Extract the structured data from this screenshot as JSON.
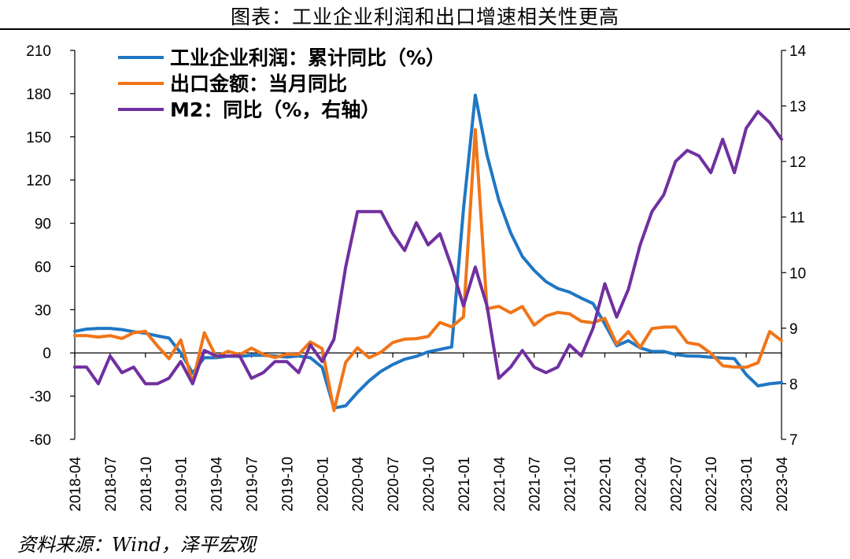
{
  "title": "图表：工业企业利润和出口增速相关性更高",
  "source": "资料来源：Wind，泽平宏观",
  "chart_data": {
    "type": "line",
    "x_tick_labels": [
      "2018-04",
      "2018-07",
      "2018-10",
      "2019-01",
      "2019-04",
      "2019-07",
      "2019-10",
      "2020-01",
      "2020-04",
      "2020-07",
      "2020-10",
      "2021-01",
      "2021-04",
      "2021-07",
      "2021-10",
      "2022-01",
      "2022-04",
      "2022-07",
      "2022-10",
      "2023-01",
      "2023-04"
    ],
    "x_range": [
      "2018-04",
      "2023-04"
    ],
    "y_left": {
      "ticks": [
        210,
        180,
        150,
        120,
        90,
        60,
        30,
        0,
        -30,
        -60
      ],
      "range": [
        -60,
        210
      ]
    },
    "y_right": {
      "ticks": [
        14,
        13,
        12,
        11,
        10,
        9,
        8,
        7
      ],
      "range": [
        7,
        14
      ]
    },
    "legend": {
      "placement": "top-left"
    },
    "grid": false,
    "series": [
      {
        "name": "工业企业利润：累计同比（%",
        "label_suffix": "）",
        "axis": "left",
        "color": "#1f77c4",
        "points": [
          [
            "2018-04",
            15
          ],
          [
            "2018-05",
            16.5
          ],
          [
            "2018-06",
            17
          ],
          [
            "2018-07",
            17
          ],
          [
            "2018-08",
            16.2
          ],
          [
            "2018-09",
            14.7
          ],
          [
            "2018-10",
            13.6
          ],
          [
            "2018-11",
            11.8
          ],
          [
            "2018-12",
            10.3
          ],
          [
            "2019-01",
            0
          ],
          [
            "2019-02",
            -14
          ],
          [
            "2019-03",
            -3.3
          ],
          [
            "2019-04",
            -3.4
          ],
          [
            "2019-05",
            -2.3
          ],
          [
            "2019-06",
            -2.4
          ],
          [
            "2019-07",
            -1.7
          ],
          [
            "2019-08",
            -1.7
          ],
          [
            "2019-09",
            -2.1
          ],
          [
            "2019-10",
            -2.9
          ],
          [
            "2019-11",
            -2.1
          ],
          [
            "2019-12",
            -3.3
          ],
          [
            "2020-01",
            -10
          ],
          [
            "2020-02",
            -38.3
          ],
          [
            "2020-03",
            -36.7
          ],
          [
            "2020-04",
            -27.4
          ],
          [
            "2020-05",
            -19.3
          ],
          [
            "2020-06",
            -12.8
          ],
          [
            "2020-07",
            -8.1
          ],
          [
            "2020-08",
            -4.4
          ],
          [
            "2020-09",
            -2.4
          ],
          [
            "2020-10",
            0.7
          ],
          [
            "2020-11",
            2.4
          ],
          [
            "2020-12",
            4.1
          ],
          [
            "2021-01",
            100
          ],
          [
            "2021-02",
            178.9
          ],
          [
            "2021-03",
            137.3
          ],
          [
            "2021-04",
            106
          ],
          [
            "2021-05",
            83.4
          ],
          [
            "2021-06",
            66.9
          ],
          [
            "2021-07",
            57.3
          ],
          [
            "2021-08",
            49.5
          ],
          [
            "2021-09",
            44.7
          ],
          [
            "2021-10",
            42.2
          ],
          [
            "2021-11",
            38
          ],
          [
            "2021-12",
            34.3
          ],
          [
            "2022-01",
            20
          ],
          [
            "2022-02",
            5
          ],
          [
            "2022-03",
            8.5
          ],
          [
            "2022-04",
            3.5
          ],
          [
            "2022-05",
            1
          ],
          [
            "2022-06",
            1
          ],
          [
            "2022-07",
            -1.1
          ],
          [
            "2022-08",
            -2.1
          ],
          [
            "2022-09",
            -2.3
          ],
          [
            "2022-10",
            -3
          ],
          [
            "2022-11",
            -3.6
          ],
          [
            "2022-12",
            -4
          ],
          [
            "2023-01",
            -15
          ],
          [
            "2023-02",
            -22.9
          ],
          [
            "2023-03",
            -21.4
          ],
          [
            "2023-04",
            -20.6
          ]
        ]
      },
      {
        "name": "出口金额：当月同比",
        "axis": "left",
        "color": "#f07518",
        "points": [
          [
            "2018-04",
            12
          ],
          [
            "2018-05",
            12
          ],
          [
            "2018-06",
            11
          ],
          [
            "2018-07",
            12
          ],
          [
            "2018-08",
            10
          ],
          [
            "2018-09",
            14
          ],
          [
            "2018-10",
            15
          ],
          [
            "2018-11",
            5
          ],
          [
            "2018-12",
            -4
          ],
          [
            "2019-01",
            9
          ],
          [
            "2019-02",
            -20.7
          ],
          [
            "2019-03",
            14
          ],
          [
            "2019-04",
            -2.7
          ],
          [
            "2019-05",
            1.1
          ],
          [
            "2019-06",
            -1.3
          ],
          [
            "2019-07",
            3.3
          ],
          [
            "2019-08",
            -1
          ],
          [
            "2019-09",
            -3.2
          ],
          [
            "2019-10",
            -0.9
          ],
          [
            "2019-11",
            -1.1
          ],
          [
            "2019-12",
            7.6
          ],
          [
            "2020-01",
            3
          ],
          [
            "2020-02",
            -40
          ],
          [
            "2020-03",
            -6.6
          ],
          [
            "2020-04",
            3.5
          ],
          [
            "2020-05",
            -3.3
          ],
          [
            "2020-06",
            0.5
          ],
          [
            "2020-07",
            7.2
          ],
          [
            "2020-08",
            9.5
          ],
          [
            "2020-09",
            9.9
          ],
          [
            "2020-10",
            11.4
          ],
          [
            "2020-11",
            21.1
          ],
          [
            "2020-12",
            18.1
          ],
          [
            "2021-01",
            25
          ],
          [
            "2021-02",
            154.9
          ],
          [
            "2021-03",
            30.6
          ],
          [
            "2021-04",
            32.3
          ],
          [
            "2021-05",
            27.9
          ],
          [
            "2021-06",
            32.2
          ],
          [
            "2021-07",
            19.3
          ],
          [
            "2021-08",
            25.6
          ],
          [
            "2021-09",
            28.1
          ],
          [
            "2021-10",
            27.1
          ],
          [
            "2021-11",
            22
          ],
          [
            "2021-12",
            20.9
          ],
          [
            "2022-01",
            24
          ],
          [
            "2022-02",
            6.2
          ],
          [
            "2022-03",
            14.7
          ],
          [
            "2022-04",
            3.9
          ],
          [
            "2022-05",
            16.9
          ],
          [
            "2022-06",
            17.9
          ],
          [
            "2022-07",
            18
          ],
          [
            "2022-08",
            7.1
          ],
          [
            "2022-09",
            5.7
          ],
          [
            "2022-10",
            -0.3
          ],
          [
            "2022-11",
            -8.9
          ],
          [
            "2022-12",
            -9.9
          ],
          [
            "2023-01",
            -10
          ],
          [
            "2023-02",
            -6.8
          ],
          [
            "2023-03",
            14.8
          ],
          [
            "2023-04",
            8.5
          ]
        ]
      },
      {
        "name": "M2：同比（%，右轴",
        "label_suffix": "）",
        "axis": "right",
        "color": "#7030a0",
        "points": [
          [
            "2018-04",
            8.3
          ],
          [
            "2018-05",
            8.3
          ],
          [
            "2018-06",
            8
          ],
          [
            "2018-07",
            8.5
          ],
          [
            "2018-08",
            8.2
          ],
          [
            "2018-09",
            8.3
          ],
          [
            "2018-10",
            8
          ],
          [
            "2018-11",
            8
          ],
          [
            "2018-12",
            8.1
          ],
          [
            "2019-01",
            8.4
          ],
          [
            "2019-02",
            8
          ],
          [
            "2019-03",
            8.6
          ],
          [
            "2019-04",
            8.5
          ],
          [
            "2019-05",
            8.5
          ],
          [
            "2019-06",
            8.5
          ],
          [
            "2019-07",
            8.1
          ],
          [
            "2019-08",
            8.2
          ],
          [
            "2019-09",
            8.4
          ],
          [
            "2019-10",
            8.4
          ],
          [
            "2019-11",
            8.2
          ],
          [
            "2019-12",
            8.7
          ],
          [
            "2020-01",
            8.4
          ],
          [
            "2020-02",
            8.8
          ],
          [
            "2020-03",
            10.1
          ],
          [
            "2020-04",
            11.1
          ],
          [
            "2020-05",
            11.1
          ],
          [
            "2020-06",
            11.1
          ],
          [
            "2020-07",
            10.7
          ],
          [
            "2020-08",
            10.4
          ],
          [
            "2020-09",
            10.9
          ],
          [
            "2020-10",
            10.5
          ],
          [
            "2020-11",
            10.7
          ],
          [
            "2020-12",
            10.1
          ],
          [
            "2021-01",
            9.4
          ],
          [
            "2021-02",
            10.1
          ],
          [
            "2021-03",
            9.4
          ],
          [
            "2021-04",
            8.1
          ],
          [
            "2021-05",
            8.3
          ],
          [
            "2021-06",
            8.6
          ],
          [
            "2021-07",
            8.3
          ],
          [
            "2021-08",
            8.2
          ],
          [
            "2021-09",
            8.3
          ],
          [
            "2021-10",
            8.7
          ],
          [
            "2021-11",
            8.5
          ],
          [
            "2021-12",
            9
          ],
          [
            "2022-01",
            9.8
          ],
          [
            "2022-02",
            9.2
          ],
          [
            "2022-03",
            9.7
          ],
          [
            "2022-04",
            10.5
          ],
          [
            "2022-05",
            11.1
          ],
          [
            "2022-06",
            11.4
          ],
          [
            "2022-07",
            12
          ],
          [
            "2022-08",
            12.2
          ],
          [
            "2022-09",
            12.1
          ],
          [
            "2022-10",
            11.8
          ],
          [
            "2022-11",
            12.4
          ],
          [
            "2022-12",
            11.8
          ],
          [
            "2023-01",
            12.6
          ],
          [
            "2023-02",
            12.9
          ],
          [
            "2023-03",
            12.7
          ],
          [
            "2023-04",
            12.4
          ]
        ]
      }
    ]
  }
}
